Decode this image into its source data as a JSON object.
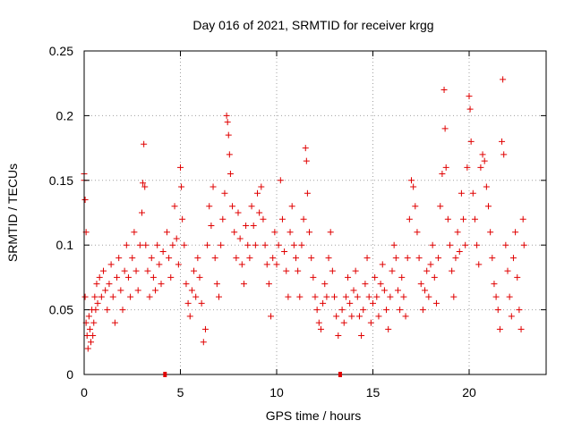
{
  "chart_data": {
    "type": "scatter",
    "title": "Day 016 of 2021, SRMTID for receiver krgg",
    "xlabel": "GPS time / hours",
    "ylabel": "SRMTID / TECUs",
    "xlim": [
      0,
      24
    ],
    "ylim": [
      0,
      0.25
    ],
    "xticks": [
      0,
      5,
      10,
      15,
      20
    ],
    "xtick_labels": [
      "0",
      "5",
      "10",
      "15",
      "20"
    ],
    "yticks": [
      0,
      0.05,
      0.1,
      0.15,
      0.2,
      0.25
    ],
    "ytick_labels": [
      "0",
      "0.05",
      "0.1",
      "0.15",
      "0.2",
      "0.25"
    ],
    "grid": true,
    "legend": "none",
    "marker": "+",
    "color": "#e00000",
    "gap_markers_x": [
      4.2,
      13.3
    ],
    "series": [
      {
        "name": "SRMTID",
        "points": [
          [
            0.0,
            0.155
          ],
          [
            0.0,
            0.15
          ],
          [
            0.05,
            0.135
          ],
          [
            0.1,
            0.11
          ],
          [
            0.05,
            0.06
          ],
          [
            0.1,
            0.04
          ],
          [
            0.15,
            0.03
          ],
          [
            0.2,
            0.02
          ],
          [
            0.25,
            0.045
          ],
          [
            0.3,
            0.035
          ],
          [
            0.35,
            0.025
          ],
          [
            0.4,
            0.05
          ],
          [
            0.45,
            0.03
          ],
          [
            0.5,
            0.04
          ],
          [
            0.55,
            0.06
          ],
          [
            0.6,
            0.05
          ],
          [
            0.65,
            0.07
          ],
          [
            0.7,
            0.055
          ],
          [
            0.8,
            0.075
          ],
          [
            0.9,
            0.06
          ],
          [
            1.0,
            0.08
          ],
          [
            1.1,
            0.065
          ],
          [
            1.2,
            0.05
          ],
          [
            1.3,
            0.07
          ],
          [
            1.4,
            0.085
          ],
          [
            1.5,
            0.06
          ],
          [
            1.6,
            0.04
          ],
          [
            1.7,
            0.075
          ],
          [
            1.8,
            0.09
          ],
          [
            1.9,
            0.065
          ],
          [
            2.0,
            0.05
          ],
          [
            2.1,
            0.08
          ],
          [
            2.2,
            0.1
          ],
          [
            2.3,
            0.075
          ],
          [
            2.4,
            0.06
          ],
          [
            2.5,
            0.09
          ],
          [
            2.6,
            0.11
          ],
          [
            2.7,
            0.08
          ],
          [
            2.8,
            0.065
          ],
          [
            2.9,
            0.1
          ],
          [
            3.0,
            0.125
          ],
          [
            3.05,
            0.148
          ],
          [
            3.1,
            0.178
          ],
          [
            3.15,
            0.145
          ],
          [
            3.2,
            0.1
          ],
          [
            3.3,
            0.08
          ],
          [
            3.4,
            0.06
          ],
          [
            3.5,
            0.09
          ],
          [
            3.6,
            0.075
          ],
          [
            3.7,
            0.065
          ],
          [
            3.8,
            0.1
          ],
          [
            3.9,
            0.085
          ],
          [
            4.0,
            0.07
          ],
          [
            4.1,
            0.095
          ],
          [
            4.3,
            0.11
          ],
          [
            4.4,
            0.09
          ],
          [
            4.5,
            0.075
          ],
          [
            4.6,
            0.1
          ],
          [
            4.7,
            0.13
          ],
          [
            4.8,
            0.105
          ],
          [
            4.9,
            0.085
          ],
          [
            5.0,
            0.16
          ],
          [
            5.05,
            0.145
          ],
          [
            5.1,
            0.12
          ],
          [
            5.2,
            0.1
          ],
          [
            5.3,
            0.07
          ],
          [
            5.4,
            0.055
          ],
          [
            5.5,
            0.045
          ],
          [
            5.6,
            0.065
          ],
          [
            5.7,
            0.08
          ],
          [
            5.8,
            0.06
          ],
          [
            5.9,
            0.09
          ],
          [
            6.0,
            0.075
          ],
          [
            6.1,
            0.055
          ],
          [
            6.2,
            0.025
          ],
          [
            6.3,
            0.035
          ],
          [
            6.4,
            0.1
          ],
          [
            6.5,
            0.13
          ],
          [
            6.6,
            0.115
          ],
          [
            6.7,
            0.145
          ],
          [
            6.8,
            0.09
          ],
          [
            6.9,
            0.07
          ],
          [
            7.0,
            0.06
          ],
          [
            7.1,
            0.1
          ],
          [
            7.2,
            0.12
          ],
          [
            7.3,
            0.14
          ],
          [
            7.4,
            0.2
          ],
          [
            7.45,
            0.195
          ],
          [
            7.5,
            0.185
          ],
          [
            7.55,
            0.17
          ],
          [
            7.6,
            0.155
          ],
          [
            7.7,
            0.13
          ],
          [
            7.8,
            0.11
          ],
          [
            7.9,
            0.09
          ],
          [
            8.0,
            0.125
          ],
          [
            8.1,
            0.105
          ],
          [
            8.2,
            0.085
          ],
          [
            8.3,
            0.07
          ],
          [
            8.4,
            0.115
          ],
          [
            8.5,
            0.1
          ],
          [
            8.6,
            0.09
          ],
          [
            8.7,
            0.13
          ],
          [
            8.8,
            0.115
          ],
          [
            8.9,
            0.1
          ],
          [
            9.0,
            0.14
          ],
          [
            9.1,
            0.125
          ],
          [
            9.2,
            0.145
          ],
          [
            9.3,
            0.12
          ],
          [
            9.4,
            0.1
          ],
          [
            9.5,
            0.085
          ],
          [
            9.6,
            0.07
          ],
          [
            9.7,
            0.045
          ],
          [
            9.8,
            0.09
          ],
          [
            9.9,
            0.11
          ],
          [
            10.0,
            0.085
          ],
          [
            10.1,
            0.1
          ],
          [
            10.2,
            0.15
          ],
          [
            10.3,
            0.12
          ],
          [
            10.4,
            0.095
          ],
          [
            10.5,
            0.08
          ],
          [
            10.6,
            0.06
          ],
          [
            10.7,
            0.11
          ],
          [
            10.8,
            0.13
          ],
          [
            10.9,
            0.1
          ],
          [
            11.0,
            0.09
          ],
          [
            11.1,
            0.08
          ],
          [
            11.2,
            0.06
          ],
          [
            11.3,
            0.1
          ],
          [
            11.4,
            0.12
          ],
          [
            11.5,
            0.175
          ],
          [
            11.55,
            0.165
          ],
          [
            11.6,
            0.14
          ],
          [
            11.7,
            0.11
          ],
          [
            11.8,
            0.09
          ],
          [
            11.9,
            0.075
          ],
          [
            12.0,
            0.06
          ],
          [
            12.1,
            0.05
          ],
          [
            12.2,
            0.04
          ],
          [
            12.3,
            0.035
          ],
          [
            12.4,
            0.055
          ],
          [
            12.5,
            0.07
          ],
          [
            12.6,
            0.06
          ],
          [
            12.7,
            0.09
          ],
          [
            12.8,
            0.11
          ],
          [
            12.9,
            0.08
          ],
          [
            13.0,
            0.06
          ],
          [
            13.1,
            0.045
          ],
          [
            13.2,
            0.03
          ],
          [
            13.4,
            0.05
          ],
          [
            13.5,
            0.04
          ],
          [
            13.6,
            0.06
          ],
          [
            13.7,
            0.075
          ],
          [
            13.8,
            0.055
          ],
          [
            13.9,
            0.045
          ],
          [
            14.0,
            0.065
          ],
          [
            14.1,
            0.08
          ],
          [
            14.2,
            0.06
          ],
          [
            14.3,
            0.045
          ],
          [
            14.4,
            0.03
          ],
          [
            14.5,
            0.05
          ],
          [
            14.6,
            0.07
          ],
          [
            14.7,
            0.09
          ],
          [
            14.8,
            0.06
          ],
          [
            14.9,
            0.04
          ],
          [
            15.0,
            0.055
          ],
          [
            15.1,
            0.075
          ],
          [
            15.2,
            0.06
          ],
          [
            15.3,
            0.045
          ],
          [
            15.4,
            0.07
          ],
          [
            15.5,
            0.085
          ],
          [
            15.6,
            0.065
          ],
          [
            15.7,
            0.05
          ],
          [
            15.8,
            0.035
          ],
          [
            15.9,
            0.06
          ],
          [
            16.0,
            0.08
          ],
          [
            16.1,
            0.1
          ],
          [
            16.2,
            0.09
          ],
          [
            16.3,
            0.065
          ],
          [
            16.4,
            0.05
          ],
          [
            16.5,
            0.075
          ],
          [
            16.6,
            0.06
          ],
          [
            16.7,
            0.045
          ],
          [
            16.8,
            0.09
          ],
          [
            16.9,
            0.12
          ],
          [
            17.0,
            0.15
          ],
          [
            17.1,
            0.145
          ],
          [
            17.2,
            0.13
          ],
          [
            17.3,
            0.11
          ],
          [
            17.4,
            0.09
          ],
          [
            17.5,
            0.07
          ],
          [
            17.6,
            0.05
          ],
          [
            17.7,
            0.065
          ],
          [
            17.8,
            0.08
          ],
          [
            17.9,
            0.06
          ],
          [
            18.0,
            0.085
          ],
          [
            18.1,
            0.1
          ],
          [
            18.2,
            0.075
          ],
          [
            18.3,
            0.055
          ],
          [
            18.4,
            0.09
          ],
          [
            18.5,
            0.13
          ],
          [
            18.6,
            0.155
          ],
          [
            18.7,
            0.22
          ],
          [
            18.75,
            0.19
          ],
          [
            18.8,
            0.16
          ],
          [
            18.9,
            0.12
          ],
          [
            19.0,
            0.1
          ],
          [
            19.1,
            0.08
          ],
          [
            19.2,
            0.06
          ],
          [
            19.3,
            0.09
          ],
          [
            19.4,
            0.11
          ],
          [
            19.5,
            0.095
          ],
          [
            19.6,
            0.14
          ],
          [
            19.7,
            0.12
          ],
          [
            19.8,
            0.1
          ],
          [
            19.9,
            0.16
          ],
          [
            20.0,
            0.215
          ],
          [
            20.05,
            0.205
          ],
          [
            20.1,
            0.18
          ],
          [
            20.2,
            0.14
          ],
          [
            20.3,
            0.12
          ],
          [
            20.4,
            0.1
          ],
          [
            20.5,
            0.085
          ],
          [
            20.6,
            0.16
          ],
          [
            20.7,
            0.17
          ],
          [
            20.8,
            0.165
          ],
          [
            20.9,
            0.145
          ],
          [
            21.0,
            0.13
          ],
          [
            21.1,
            0.11
          ],
          [
            21.2,
            0.09
          ],
          [
            21.3,
            0.07
          ],
          [
            21.4,
            0.06
          ],
          [
            21.5,
            0.05
          ],
          [
            21.6,
            0.035
          ],
          [
            21.7,
            0.18
          ],
          [
            21.75,
            0.228
          ],
          [
            21.8,
            0.17
          ],
          [
            21.9,
            0.1
          ],
          [
            22.0,
            0.08
          ],
          [
            22.1,
            0.06
          ],
          [
            22.2,
            0.045
          ],
          [
            22.3,
            0.09
          ],
          [
            22.4,
            0.11
          ],
          [
            22.5,
            0.075
          ],
          [
            22.6,
            0.05
          ],
          [
            22.7,
            0.035
          ],
          [
            22.8,
            0.12
          ],
          [
            22.85,
            0.1
          ]
        ]
      }
    ]
  }
}
